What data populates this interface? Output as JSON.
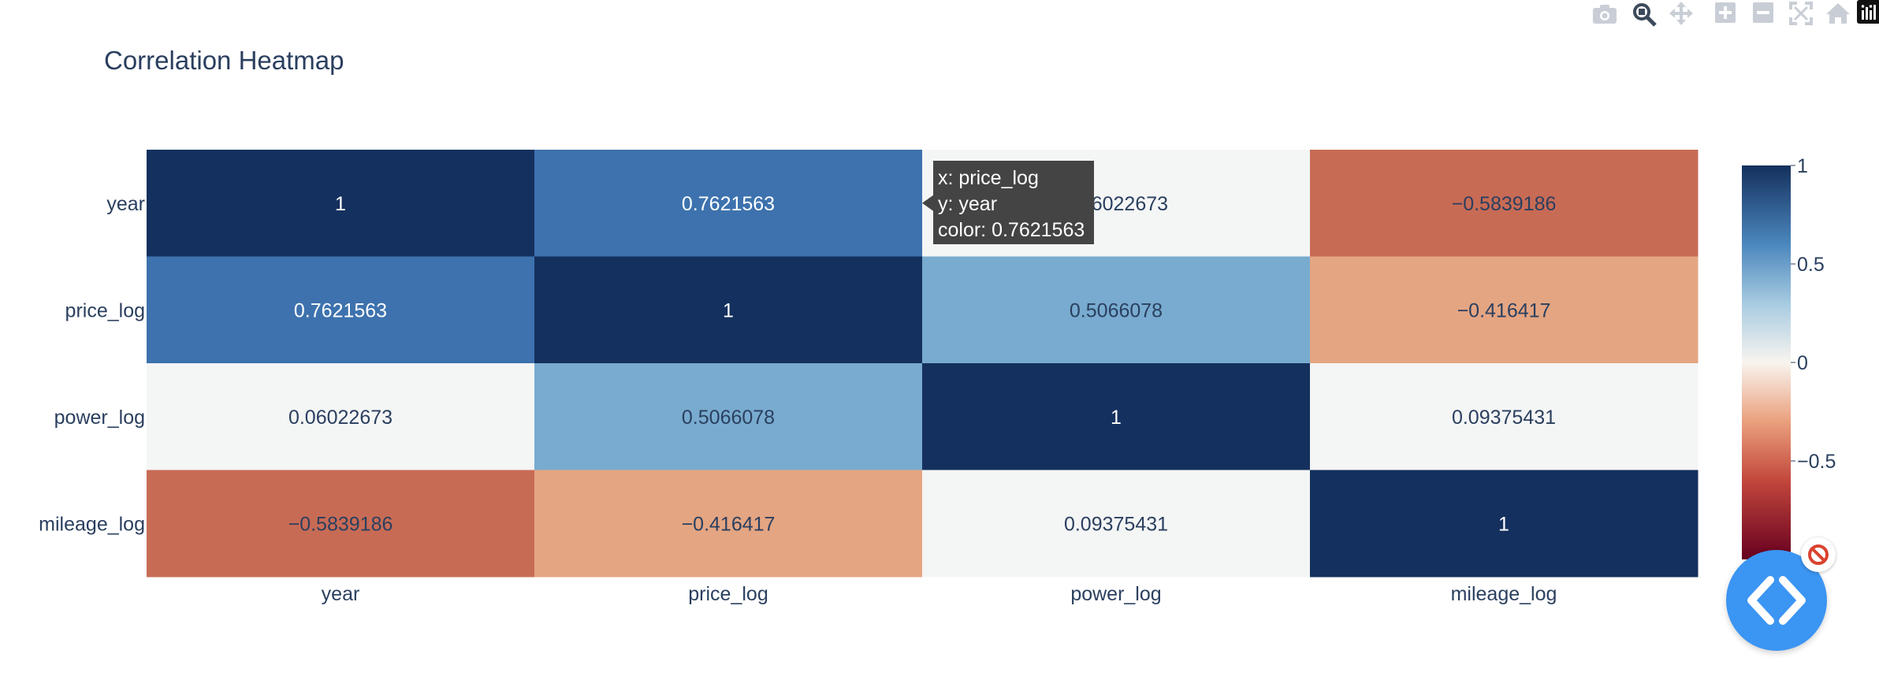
{
  "chart_data": {
    "type": "heatmap",
    "title": "Correlation Heatmap",
    "x": [
      "year",
      "price_log",
      "power_log",
      "mileage_log"
    ],
    "y": [
      "year",
      "price_log",
      "power_log",
      "mileage_log"
    ],
    "z": [
      [
        1,
        0.7621563,
        0.06022673,
        -0.5839186
      ],
      [
        0.7621563,
        1,
        0.5066078,
        -0.416417
      ],
      [
        0.06022673,
        0.5066078,
        1,
        0.09375431
      ],
      [
        -0.5839186,
        -0.416417,
        0.09375431,
        1
      ]
    ],
    "z_labels": [
      [
        "1",
        "0.7621563",
        "0.06022673",
        "−0.5839186"
      ],
      [
        "0.7621563",
        "1",
        "0.5066078",
        "−0.416417"
      ],
      [
        "0.06022673",
        "0.5066078",
        "1",
        "0.09375431"
      ],
      [
        "−0.5839186",
        "−0.416417",
        "0.09375431",
        "1"
      ]
    ],
    "colorscale": "RdBu",
    "zrange": [
      -1,
      1
    ],
    "colorbar_ticks": [
      1,
      0.5,
      0,
      -0.5
    ],
    "colorbar_tick_labels": [
      "1",
      "0.5",
      "0",
      "−0.5"
    ],
    "colors": {
      "strong_positive": "#14305e",
      "positive": "#3d72ae",
      "mild_positive": "#78abcf",
      "neutral": "#f4f5f5",
      "mild_negative": "#e4a582",
      "negative": "#c86b55",
      "strong_negative": "#6b0a1f"
    },
    "hover": {
      "lines": [
        "x: price_log",
        "y: year",
        "color: 0.7621563"
      ],
      "row": 0,
      "col": 1
    }
  },
  "modebar": {
    "icons": [
      "camera-icon",
      "zoom-icon",
      "pan-icon",
      "zoom-in-icon",
      "zoom-out-icon",
      "autoscale-icon",
      "reset-axes-icon",
      "plotly-logo-icon"
    ]
  },
  "floating": {
    "code_button_icon": "code-brackets-icon",
    "badge_icon": "blocked-icon"
  }
}
